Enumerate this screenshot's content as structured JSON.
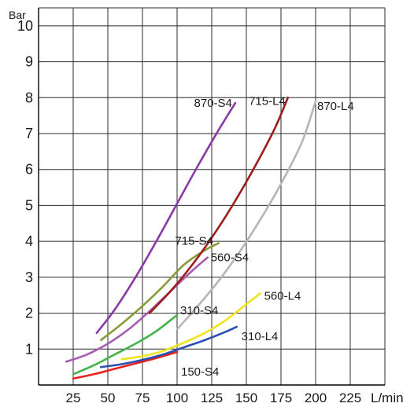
{
  "chart_data": {
    "type": "line",
    "ylabel": "Bar",
    "xlabel": "L/min",
    "xlim": [
      0,
      250
    ],
    "ylim": [
      0,
      10.5
    ],
    "x_ticks": [
      "25",
      "50",
      "75",
      "100",
      "125",
      "150",
      "175",
      "200",
      "225"
    ],
    "y_ticks": [
      "1",
      "2",
      "3",
      "4",
      "5",
      "6",
      "7",
      "8",
      "9",
      "10"
    ],
    "grid": true,
    "series": [
      {
        "name": "150-S4",
        "color": "#e8231e",
        "x": [
          25,
          40,
          55,
          70,
          85,
          100
        ],
        "y": [
          0.18,
          0.3,
          0.45,
          0.6,
          0.75,
          0.92
        ]
      },
      {
        "name": "310-L4",
        "color": "#2a4fb0",
        "x": [
          45,
          60,
          75,
          90,
          105,
          120,
          135,
          143
        ],
        "y": [
          0.5,
          0.58,
          0.7,
          0.85,
          1.05,
          1.25,
          1.48,
          1.62
        ]
      },
      {
        "name": "560-L4",
        "color": "#f0e31c",
        "x": [
          60,
          75,
          90,
          105,
          120,
          135,
          150,
          160
        ],
        "y": [
          0.72,
          0.8,
          0.95,
          1.18,
          1.45,
          1.8,
          2.25,
          2.55
        ]
      },
      {
        "name": "310-S4",
        "color": "#44b34a",
        "x": [
          25,
          40,
          55,
          70,
          85,
          100
        ],
        "y": [
          0.3,
          0.55,
          0.85,
          1.15,
          1.5,
          1.95
        ]
      },
      {
        "name": "560-S4",
        "color": "#a55bb0",
        "x": [
          20,
          35,
          50,
          65,
          80,
          95,
          110,
          122
        ],
        "y": [
          0.65,
          0.85,
          1.15,
          1.55,
          2.05,
          2.6,
          3.15,
          3.55
        ]
      },
      {
        "name": "715-S4",
        "color": "#8a9a3a",
        "x": [
          45,
          60,
          75,
          90,
          105,
          120,
          130
        ],
        "y": [
          1.25,
          1.7,
          2.2,
          2.75,
          3.35,
          3.75,
          3.95
        ]
      },
      {
        "name": "870-S4",
        "color": "#8a3aa6",
        "x": [
          42,
          55,
          70,
          85,
          100,
          115,
          130,
          142
        ],
        "y": [
          1.45,
          2.1,
          3.0,
          4.0,
          5.05,
          6.1,
          7.1,
          7.85
        ]
      },
      {
        "name": "715-L4",
        "color": "#9e1c1c",
        "x": [
          80,
          95,
          110,
          125,
          140,
          155,
          170,
          180
        ],
        "y": [
          2.0,
          2.6,
          3.3,
          4.1,
          5.0,
          6.0,
          7.1,
          8.0
        ]
      },
      {
        "name": "870-L4",
        "color": "#b5b5b5",
        "x": [
          100,
          115,
          130,
          145,
          160,
          175,
          190,
          200
        ],
        "y": [
          1.55,
          2.2,
          2.9,
          3.7,
          4.6,
          5.6,
          6.75,
          7.9
        ]
      }
    ]
  }
}
